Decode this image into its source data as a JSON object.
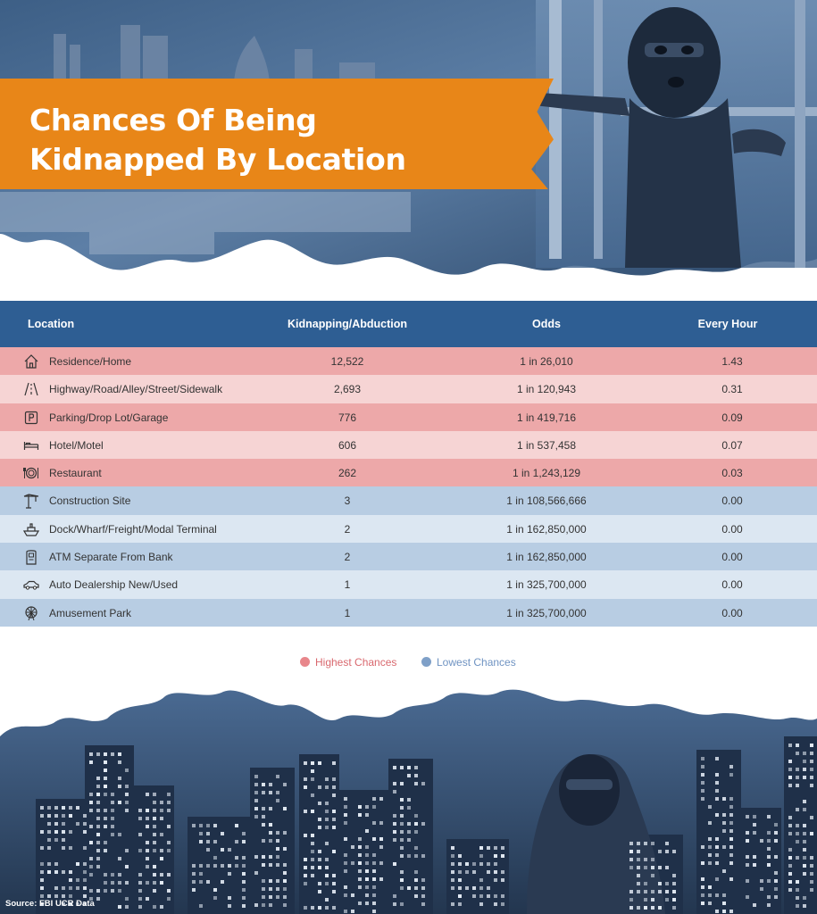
{
  "title_line1": "Chances Of Being",
  "title_line2": "Kidnapped By Location",
  "columns": {
    "location": "Location",
    "kidnapping": "Kidnapping/Abduction",
    "odds": "Odds",
    "every_hour": "Every Hour"
  },
  "rows": [
    {
      "icon": "house-icon",
      "location": "Residence/Home",
      "kidnapping": "12,522",
      "odds": "1 in 26,010",
      "every_hour": "1.43",
      "group": "high"
    },
    {
      "icon": "road-icon",
      "location": "Highway/Road/Alley/Street/Sidewalk",
      "kidnapping": "2,693",
      "odds": "1 in 120,943",
      "every_hour": "0.31",
      "group": "high"
    },
    {
      "icon": "parking-icon",
      "location": "Parking/Drop Lot/Garage",
      "kidnapping": "776",
      "odds": "1 in 419,716",
      "every_hour": "0.09",
      "group": "high"
    },
    {
      "icon": "bed-icon",
      "location": "Hotel/Motel",
      "kidnapping": "606",
      "odds": "1 in 537,458",
      "every_hour": "0.07",
      "group": "high"
    },
    {
      "icon": "plate-icon",
      "location": "Restaurant",
      "kidnapping": "262",
      "odds": "1 in 1,243,129",
      "every_hour": "0.03",
      "group": "high"
    },
    {
      "icon": "crane-icon",
      "location": "Construction Site",
      "kidnapping": "3",
      "odds": "1 in 108,566,666",
      "every_hour": "0.00",
      "group": "low"
    },
    {
      "icon": "ship-icon",
      "location": "Dock/Wharf/Freight/Modal Terminal",
      "kidnapping": "2",
      "odds": "1 in 162,850,000",
      "every_hour": "0.00",
      "group": "low"
    },
    {
      "icon": "atm-icon",
      "location": "ATM Separate From Bank",
      "kidnapping": "2",
      "odds": "1 in 162,850,000",
      "every_hour": "0.00",
      "group": "low"
    },
    {
      "icon": "car-icon",
      "location": "Auto Dealership New/Used",
      "kidnapping": "1",
      "odds": "1 in 325,700,000",
      "every_hour": "0.00",
      "group": "low"
    },
    {
      "icon": "ferris-wheel-icon",
      "location": "Amusement Park",
      "kidnapping": "1",
      "odds": "1 in 325,700,000",
      "every_hour": "0.00",
      "group": "low"
    }
  ],
  "legend": {
    "high": {
      "label": "Highest Chances",
      "color": "#e8868b"
    },
    "low": {
      "label": "Lowest Chances",
      "color": "#7fa0c8"
    }
  },
  "source": "Source: FBI UCR Data",
  "colors": {
    "title_banner": "#e88618",
    "header": "#2e5e93",
    "high_text": "#d9686e",
    "low_text": "#6f93c2"
  }
}
